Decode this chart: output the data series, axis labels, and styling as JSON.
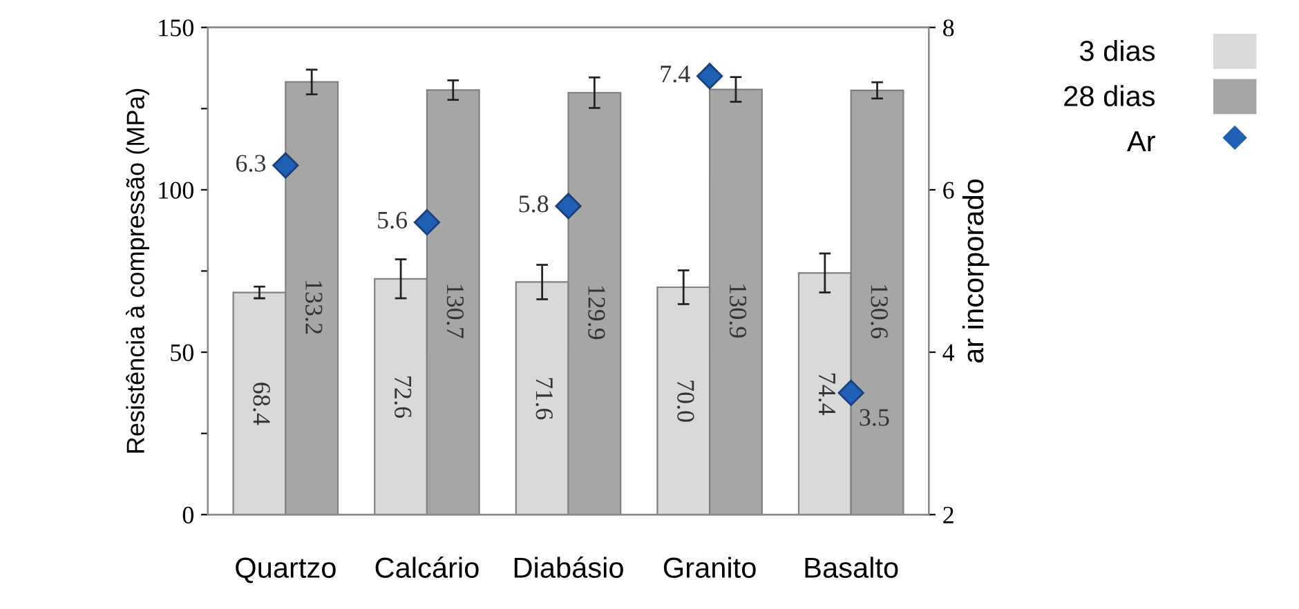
{
  "chart_data": {
    "type": "bar",
    "categories": [
      "Quartzo",
      "Calcário",
      "Diabásio",
      "Granito",
      "Basalto"
    ],
    "ylabel": "Resistência à compressão (MPa)",
    "y2label": "ar incorporado",
    "ylim": [
      0,
      150
    ],
    "yticks": [
      0,
      {
        "value": 25,
        "label": null
      },
      50,
      {
        "value": 75,
        "label": null
      },
      100,
      {
        "value": 125,
        "label": null
      },
      150
    ],
    "y2lim": [
      2,
      8
    ],
    "y2ticks": [
      2,
      4,
      6,
      8
    ],
    "legend": "top right",
    "grid": false,
    "series": [
      {
        "name": "3 dias",
        "color": "#d9d9d9",
        "values": [
          68.4,
          72.6,
          71.6,
          70.0,
          74.4
        ],
        "value_labels": [
          "68.4",
          "72.6",
          "71.6",
          "70.0",
          "74.4"
        ],
        "errors": [
          1.8,
          6,
          5.3,
          5.2,
          6
        ]
      },
      {
        "name": "28 dias",
        "color": "#a6a6a6",
        "values": [
          133.2,
          130.7,
          129.9,
          130.9,
          130.6
        ],
        "value_labels": [
          "133.2",
          "130.7",
          "129.9",
          "130.9",
          "130.6"
        ],
        "errors": [
          3.8,
          3,
          4.7,
          3.8,
          2.5
        ]
      },
      {
        "name": "Ar",
        "type": "scatter",
        "axis": "y2",
        "marker": "diamond",
        "color": "#1f5fb4",
        "values": [
          6.3,
          5.6,
          5.8,
          7.4,
          3.5
        ],
        "value_labels": [
          "6.3",
          "5.6",
          "5.8",
          "7.4",
          "3.5"
        ]
      }
    ]
  }
}
